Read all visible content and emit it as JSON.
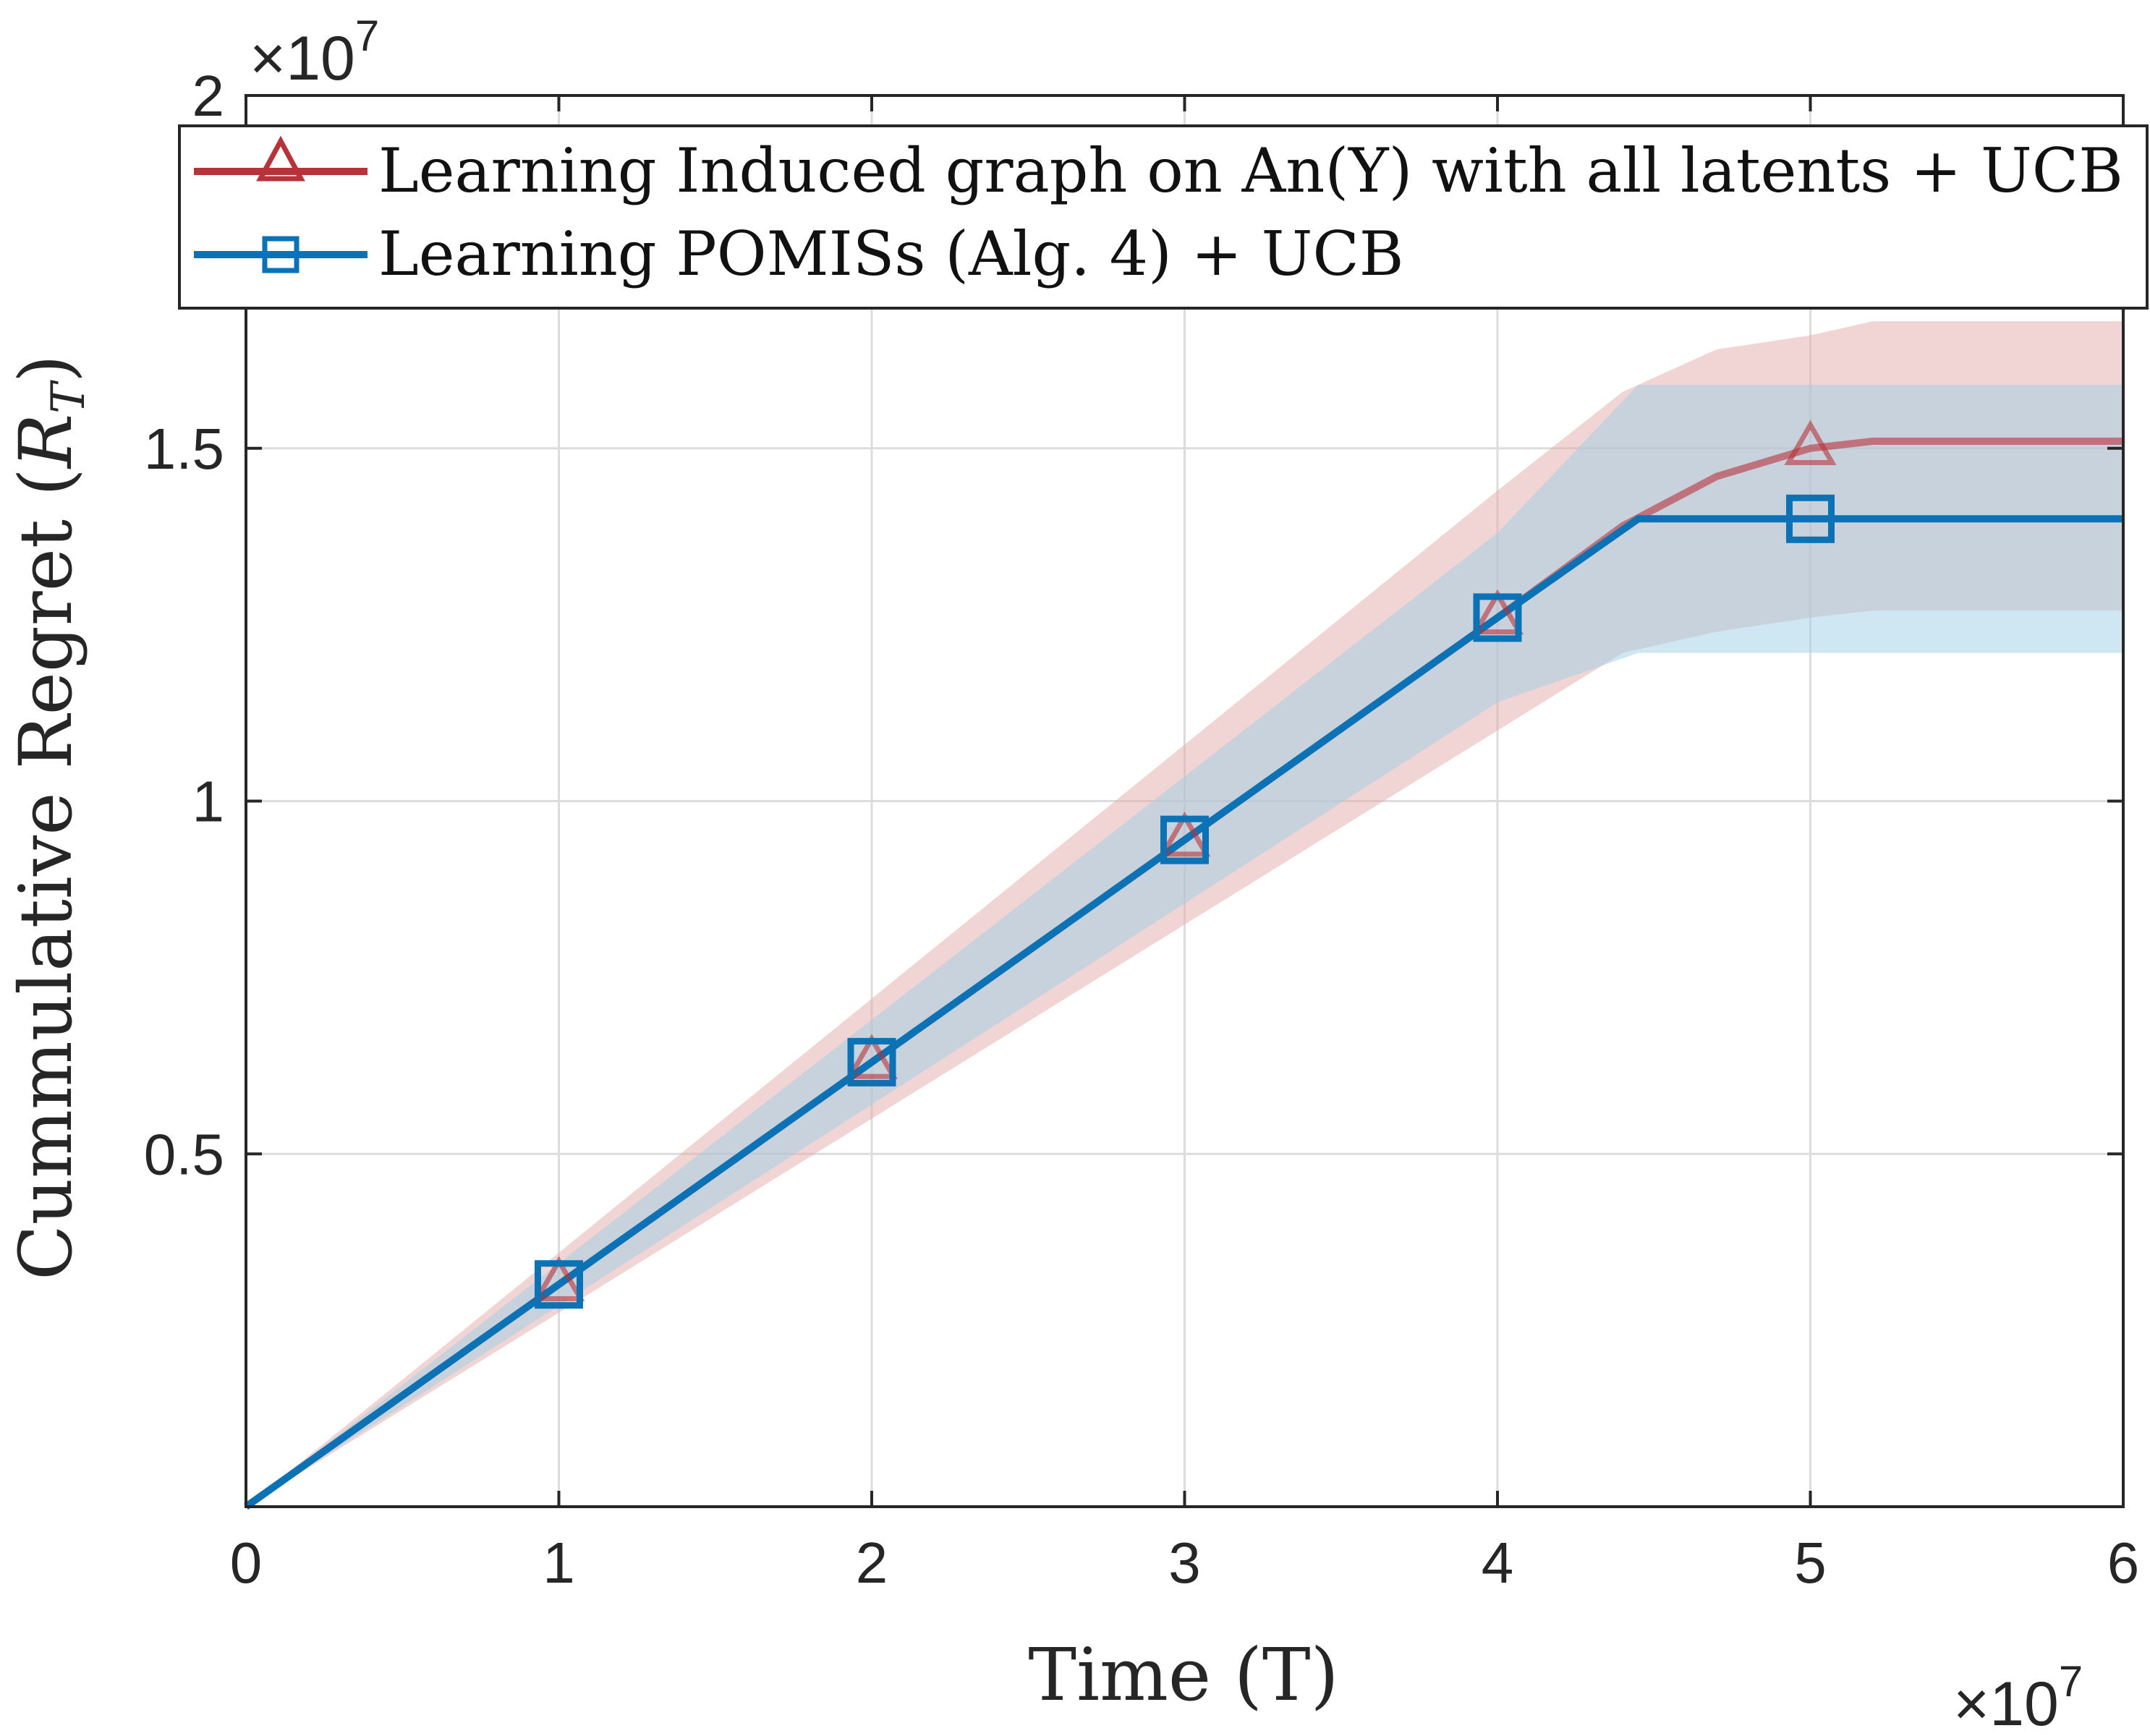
{
  "chart_data": {
    "type": "line",
    "title": "",
    "xlabel": "Time (T)",
    "ylabel_text": "Cummulative Regret (",
    "ylabel_var": "R",
    "ylabel_sub": "T",
    "ylabel_close": ")",
    "xlim": [
      0,
      6
    ],
    "ylim": [
      0,
      2
    ],
    "x_ticks": [
      0,
      1,
      2,
      3,
      4,
      5,
      6
    ],
    "x_tick_labels": [
      "0",
      "1",
      "2",
      "3",
      "4",
      "5",
      "6"
    ],
    "y_ticks": [
      0.5,
      1,
      1.5,
      2
    ],
    "y_tick_labels": [
      "0.5",
      "1",
      "1.5",
      "2"
    ],
    "x_exponent": {
      "prefix": "×10",
      "power": "7"
    },
    "y_exponent": {
      "prefix": "×10",
      "power": "7"
    },
    "grid": true,
    "legend_position": "top",
    "series": [
      {
        "name": "Learning Induced graph on An(Y) with all latents + UCB",
        "color": "#b8323a",
        "marker": "triangle",
        "x": [
          0,
          1,
          2,
          3,
          4,
          4.4,
          4.7,
          5.0,
          5.2,
          6.0
        ],
        "y": [
          0,
          0.315,
          0.63,
          0.945,
          1.26,
          1.39,
          1.46,
          1.5,
          1.51,
          1.51
        ],
        "band_lower": [
          0,
          0.275,
          0.55,
          0.825,
          1.1,
          1.21,
          1.24,
          1.26,
          1.27,
          1.27
        ],
        "band_upper": [
          0,
          0.36,
          0.72,
          1.08,
          1.44,
          1.58,
          1.64,
          1.66,
          1.68,
          1.68
        ],
        "band_color": "#e3a9aa",
        "marker_x": [
          1,
          2,
          3,
          4,
          5
        ]
      },
      {
        "name": "Learning POMISs (Alg. 4) + UCB",
        "color": "#0a72b5",
        "marker": "square",
        "x": [
          0,
          1,
          2,
          3,
          4,
          4.45,
          6.0
        ],
        "y": [
          0,
          0.315,
          0.63,
          0.945,
          1.26,
          1.4,
          1.4
        ],
        "band_lower": [
          0,
          0.285,
          0.57,
          0.855,
          1.14,
          1.21,
          1.21
        ],
        "band_upper": [
          0,
          0.345,
          0.69,
          1.035,
          1.38,
          1.59,
          1.59
        ],
        "band_color": "#9fd0e6",
        "marker_x": [
          1,
          2,
          3,
          4,
          5
        ]
      }
    ]
  }
}
